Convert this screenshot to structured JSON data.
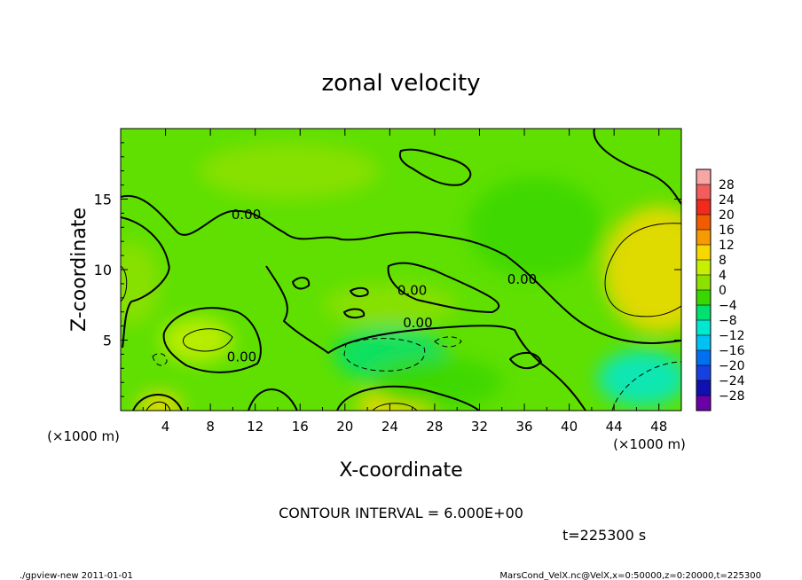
{
  "chart_data": {
    "type": "heatmap",
    "title": "zonal velocity",
    "xlabel": "X-coordinate",
    "ylabel": "Z-coordinate",
    "x_unit": "(×1000 m)",
    "y_unit": "(×1000 m)",
    "xlim": [
      0,
      50
    ],
    "ylim": [
      0,
      20
    ],
    "x_ticks": [
      4,
      8,
      12,
      16,
      20,
      24,
      28,
      32,
      36,
      40,
      44,
      48
    ],
    "y_ticks": [
      5,
      10,
      15
    ],
    "contour_interval_label": "CONTOUR INTERVAL = 6.000E+00",
    "time_label": "t=225300 s",
    "colorbar": {
      "labels": [
        28,
        24,
        20,
        16,
        12,
        8,
        4,
        0,
        -4,
        -8,
        -12,
        -16,
        -20,
        -24,
        -28
      ],
      "colors": [
        "#f7a5a5",
        "#f25c5c",
        "#f02a1c",
        "#f25c00",
        "#f59a00",
        "#f6d800",
        "#c8ef00",
        "#8ee000",
        "#3ad600",
        "#00e070",
        "#00e8d0",
        "#00c0f4",
        "#0070f0",
        "#1840e0",
        "#1010b0",
        "#6a00a8"
      ]
    },
    "contour_labels": [
      {
        "text": "0.00",
        "x": 11.2,
        "y": 13.6
      },
      {
        "text": "0.00",
        "x": 26.0,
        "y": 8.2
      },
      {
        "text": "0.00",
        "x": 35.8,
        "y": 9.0
      },
      {
        "text": "0.00",
        "x": 26.5,
        "y": 5.9
      },
      {
        "text": "0.00",
        "x": 10.8,
        "y": 3.5
      }
    ],
    "blobs": [
      {
        "x": 48.0,
        "y": 10.0,
        "rx": 5.0,
        "ry": 4.5,
        "value": 9
      },
      {
        "x": 6.8,
        "y": 5.0,
        "rx": 3.2,
        "ry": 1.6,
        "value": 8
      },
      {
        "x": 3.5,
        "y": 0.3,
        "rx": 2.0,
        "ry": 1.0,
        "value": 10
      },
      {
        "x": 24.5,
        "y": 0.3,
        "rx": 3.5,
        "ry": 1.2,
        "value": 10
      },
      {
        "x": 24.0,
        "y": 4.0,
        "rx": 5.0,
        "ry": 2.0,
        "value": -6
      },
      {
        "x": 46.5,
        "y": 2.3,
        "rx": 4.0,
        "ry": 2.0,
        "value": -8
      },
      {
        "x": 37.0,
        "y": 13.0,
        "rx": 6.0,
        "ry": 3.5,
        "value": -3
      },
      {
        "x": 28.0,
        "y": 2.0,
        "rx": 6.0,
        "ry": 1.8,
        "value": -3
      },
      {
        "x": 1.0,
        "y": 9.0,
        "rx": 2.5,
        "ry": 3.0,
        "value": 4
      },
      {
        "x": 15.0,
        "y": 17.0,
        "rx": 8.0,
        "ry": 2.0,
        "value": 3
      },
      {
        "x": 24.0,
        "y": 7.5,
        "rx": 6.0,
        "ry": 1.5,
        "value": 3
      }
    ]
  },
  "footer": {
    "left": "./gpview-new  2011-01-01",
    "right": "MarsCond_VelX.nc@VelX,x=0:50000,z=0:20000,t=225300"
  }
}
